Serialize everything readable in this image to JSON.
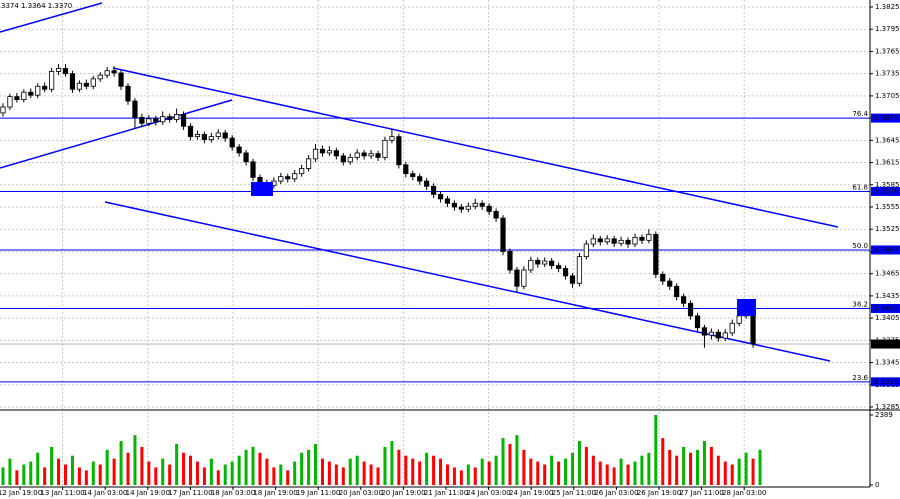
{
  "header": "3374 1.3364 1.3370",
  "chart_data": {
    "type": "candlestick",
    "candles": [
      [
        1.3682,
        1.3695,
        1.3677,
        1.369
      ],
      [
        1.369,
        1.3708,
        1.3686,
        1.3704
      ],
      [
        1.3704,
        1.3709,
        1.3696,
        1.37
      ],
      [
        1.37,
        1.3714,
        1.3696,
        1.371
      ],
      [
        1.371,
        1.3715,
        1.3702,
        1.3706
      ],
      [
        1.3706,
        1.3722,
        1.3702,
        1.3718
      ],
      [
        1.3718,
        1.3723,
        1.371,
        1.3714
      ],
      [
        1.3714,
        1.3743,
        1.371,
        1.3738
      ],
      [
        1.3738,
        1.3748,
        1.3733,
        1.3742
      ],
      [
        1.3742,
        1.3748,
        1.3731,
        1.3735
      ],
      [
        1.3735,
        1.3739,
        1.3709,
        1.3714
      ],
      [
        1.3714,
        1.3726,
        1.371,
        1.3722
      ],
      [
        1.3722,
        1.3727,
        1.3714,
        1.3718
      ],
      [
        1.3718,
        1.3732,
        1.3714,
        1.3728
      ],
      [
        1.3728,
        1.3737,
        1.3724,
        1.3733
      ],
      [
        1.3733,
        1.3744,
        1.3729,
        1.3739
      ],
      [
        1.3739,
        1.3745,
        1.3731,
        1.3736
      ],
      [
        1.3736,
        1.374,
        1.3713,
        1.3718
      ],
      [
        1.3718,
        1.3722,
        1.3693,
        1.3698
      ],
      [
        1.3698,
        1.3702,
        1.366,
        1.3676
      ],
      [
        1.3676,
        1.3681,
        1.3663,
        1.3668
      ],
      [
        1.3668,
        1.3679,
        1.3664,
        1.3674
      ],
      [
        1.3674,
        1.3678,
        1.3665,
        1.367
      ],
      [
        1.367,
        1.3684,
        1.3666,
        1.3677
      ],
      [
        1.3677,
        1.3681,
        1.3669,
        1.3673
      ],
      [
        1.3673,
        1.3688,
        1.3669,
        1.368
      ],
      [
        1.368,
        1.3684,
        1.3659,
        1.3664
      ],
      [
        1.3664,
        1.3668,
        1.3645,
        1.365
      ],
      [
        1.365,
        1.3658,
        1.3646,
        1.3653
      ],
      [
        1.3653,
        1.3657,
        1.3641,
        1.3646
      ],
      [
        1.3646,
        1.3655,
        1.3642,
        1.365
      ],
      [
        1.365,
        1.366,
        1.3646,
        1.3655
      ],
      [
        1.3655,
        1.3659,
        1.3643,
        1.3648
      ],
      [
        1.3648,
        1.3652,
        1.3631,
        1.3636
      ],
      [
        1.3636,
        1.364,
        1.3623,
        1.3628
      ],
      [
        1.3628,
        1.3632,
        1.3611,
        1.3616
      ],
      [
        1.3616,
        1.362,
        1.359,
        1.3595
      ],
      [
        1.3595,
        1.3599,
        1.358,
        1.3586
      ],
      [
        1.3586,
        1.3592,
        1.3579,
        1.3584
      ],
      [
        1.3584,
        1.3595,
        1.358,
        1.359
      ],
      [
        1.359,
        1.3601,
        1.3586,
        1.3596
      ],
      [
        1.3596,
        1.36,
        1.3588,
        1.3593
      ],
      [
        1.3593,
        1.3605,
        1.3589,
        1.36
      ],
      [
        1.36,
        1.3612,
        1.3596,
        1.3607
      ],
      [
        1.3607,
        1.3625,
        1.3603,
        1.362
      ],
      [
        1.362,
        1.364,
        1.3616,
        1.3633
      ],
      [
        1.3633,
        1.3638,
        1.3623,
        1.3628
      ],
      [
        1.3628,
        1.3637,
        1.3624,
        1.3631
      ],
      [
        1.3631,
        1.3635,
        1.3619,
        1.3624
      ],
      [
        1.3624,
        1.3628,
        1.3611,
        1.3616
      ],
      [
        1.3616,
        1.3627,
        1.3612,
        1.3622
      ],
      [
        1.3622,
        1.3633,
        1.3618,
        1.3628
      ],
      [
        1.3628,
        1.3632,
        1.3619,
        1.3624
      ],
      [
        1.3624,
        1.3632,
        1.362,
        1.3627
      ],
      [
        1.3627,
        1.3631,
        1.3617,
        1.3622
      ],
      [
        1.3622,
        1.365,
        1.3618,
        1.3645
      ],
      [
        1.3645,
        1.366,
        1.3641,
        1.365
      ],
      [
        1.365,
        1.3654,
        1.3607,
        1.3612
      ],
      [
        1.3612,
        1.3616,
        1.3595,
        1.36
      ],
      [
        1.36,
        1.3604,
        1.3591,
        1.3596
      ],
      [
        1.3596,
        1.36,
        1.3585,
        1.359
      ],
      [
        1.359,
        1.3594,
        1.3578,
        1.3583
      ],
      [
        1.3583,
        1.3587,
        1.3567,
        1.3572
      ],
      [
        1.3572,
        1.3576,
        1.3561,
        1.3566
      ],
      [
        1.3566,
        1.357,
        1.3555,
        1.356
      ],
      [
        1.356,
        1.3564,
        1.355,
        1.3555
      ],
      [
        1.3555,
        1.3559,
        1.3547,
        1.3552
      ],
      [
        1.3552,
        1.3561,
        1.3548,
        1.3556
      ],
      [
        1.3556,
        1.3566,
        1.3552,
        1.356
      ],
      [
        1.356,
        1.3564,
        1.3551,
        1.3556
      ],
      [
        1.3556,
        1.356,
        1.3544,
        1.3549
      ],
      [
        1.3549,
        1.3553,
        1.3535,
        1.354
      ],
      [
        1.354,
        1.3544,
        1.349,
        1.3495
      ],
      [
        1.3495,
        1.3499,
        1.3465,
        1.347
      ],
      [
        1.347,
        1.3474,
        1.344,
        1.3448
      ],
      [
        1.3448,
        1.3475,
        1.3444,
        1.347
      ],
      [
        1.347,
        1.3488,
        1.3466,
        1.3483
      ],
      [
        1.3483,
        1.3487,
        1.3473,
        1.3478
      ],
      [
        1.3478,
        1.3487,
        1.3474,
        1.3482
      ],
      [
        1.3482,
        1.3486,
        1.3471,
        1.3476
      ],
      [
        1.3476,
        1.348,
        1.3467,
        1.3472
      ],
      [
        1.3472,
        1.3476,
        1.3457,
        1.3462
      ],
      [
        1.3462,
        1.3466,
        1.3446,
        1.3452
      ],
      [
        1.3452,
        1.3493,
        1.3448,
        1.3488
      ],
      [
        1.3488,
        1.351,
        1.3484,
        1.3505
      ],
      [
        1.3505,
        1.3518,
        1.3501,
        1.3512
      ],
      [
        1.3512,
        1.3516,
        1.3503,
        1.3508
      ],
      [
        1.3508,
        1.3517,
        1.3504,
        1.3512
      ],
      [
        1.3512,
        1.3516,
        1.3501,
        1.3506
      ],
      [
        1.3506,
        1.3515,
        1.3502,
        1.351
      ],
      [
        1.351,
        1.3514,
        1.35,
        1.3505
      ],
      [
        1.3505,
        1.3519,
        1.3501,
        1.3514
      ],
      [
        1.3514,
        1.3518,
        1.3505,
        1.351
      ],
      [
        1.351,
        1.3525,
        1.3506,
        1.3518
      ],
      [
        1.3518,
        1.3522,
        1.3459,
        1.3464
      ],
      [
        1.3464,
        1.3468,
        1.345,
        1.3455
      ],
      [
        1.3455,
        1.3459,
        1.3443,
        1.3448
      ],
      [
        1.3448,
        1.3452,
        1.3429,
        1.3434
      ],
      [
        1.3434,
        1.3438,
        1.342,
        1.3425
      ],
      [
        1.3425,
        1.3429,
        1.3403,
        1.3408
      ],
      [
        1.3408,
        1.3412,
        1.3387,
        1.3392
      ],
      [
        1.3392,
        1.3396,
        1.3365,
        1.3382
      ],
      [
        1.3382,
        1.3391,
        1.3376,
        1.3386
      ],
      [
        1.3386,
        1.339,
        1.3373,
        1.3378
      ],
      [
        1.3378,
        1.339,
        1.3374,
        1.3385
      ],
      [
        1.3385,
        1.3403,
        1.3381,
        1.3398
      ],
      [
        1.3398,
        1.3413,
        1.3394,
        1.3408
      ],
      [
        1.3408,
        1.342,
        1.3404,
        1.3414
      ],
      [
        1.3414,
        1.3418,
        1.3365,
        1.337
      ]
    ],
    "categories": [
      "12 Jan 19:00",
      "13 Jan 11:00",
      "14 Jan 03:00",
      "14 Jan 19:00",
      "17 Jan 11:00",
      "18 Jan 03:00",
      "18 Jan 19:00",
      "19 Jan 11:00",
      "20 Jan 03:00",
      "20 Jan 19:00",
      "21 Jan 11:00",
      "24 Jan 03:00",
      "24 Jan 19:00",
      "25 Jan 11:00",
      "26 Jan 03:00",
      "26 Jan 19:00",
      "27 Jan 11:00",
      "28 Jan 03:00"
    ],
    "ylim": [
      1.3285,
      1.3825
    ],
    "yticks": [
      1.3825,
      1.3795,
      1.3765,
      1.3735,
      1.3705,
      1.3675,
      1.3645,
      1.3615,
      1.3585,
      1.3555,
      1.3525,
      1.3495,
      1.3465,
      1.3435,
      1.3405,
      1.3375,
      1.3345,
      1.3315,
      1.3285
    ],
    "grid": true,
    "color": "#000000",
    "fib_color": "#0000ff",
    "fib_levels": [
      {
        "label": "76.4",
        "price": 1.3675
      },
      {
        "label": "61.8",
        "price": 1.3576
      },
      {
        "label": "50.0",
        "price": 1.3497
      },
      {
        "label": "38.2",
        "price": 1.3418
      },
      {
        "label": "23.6",
        "price": 1.3319
      }
    ],
    "current_price": {
      "value": 1.337,
      "label": "1.3370"
    },
    "volume": {
      "values": [
        600,
        900,
        500,
        700,
        800,
        1100,
        600,
        1300,
        900,
        700,
        1000,
        600,
        500,
        800,
        700,
        1200,
        900,
        1500,
        1100,
        1700,
        1300,
        800,
        600,
        900,
        700,
        1400,
        1100,
        1000,
        800,
        600,
        900,
        500,
        700,
        800,
        1000,
        1200,
        1300,
        1100,
        900,
        600,
        700,
        500,
        800,
        1100,
        1200,
        1400,
        900,
        800,
        700,
        600,
        900,
        1000,
        800,
        700,
        600,
        1300,
        1500,
        1200,
        1000,
        900,
        800,
        1100,
        1000,
        900,
        700,
        600,
        500,
        700,
        600,
        900,
        800,
        1000,
        1600,
        1400,
        1700,
        1200,
        900,
        800,
        700,
        1000,
        800,
        900,
        1100,
        1500,
        1300,
        1000,
        800,
        700,
        600,
        900,
        700,
        800,
        1000,
        1100,
        2389,
        1600,
        1200,
        1000,
        1300,
        1100,
        1200,
        1500,
        1300,
        1000,
        800,
        700,
        900,
        1100,
        900,
        1200
      ],
      "ylim": [
        0,
        2389
      ],
      "yticks": [
        2389,
        0
      ],
      "up_color": "#00b400",
      "down_color": "#ff0000"
    }
  }
}
